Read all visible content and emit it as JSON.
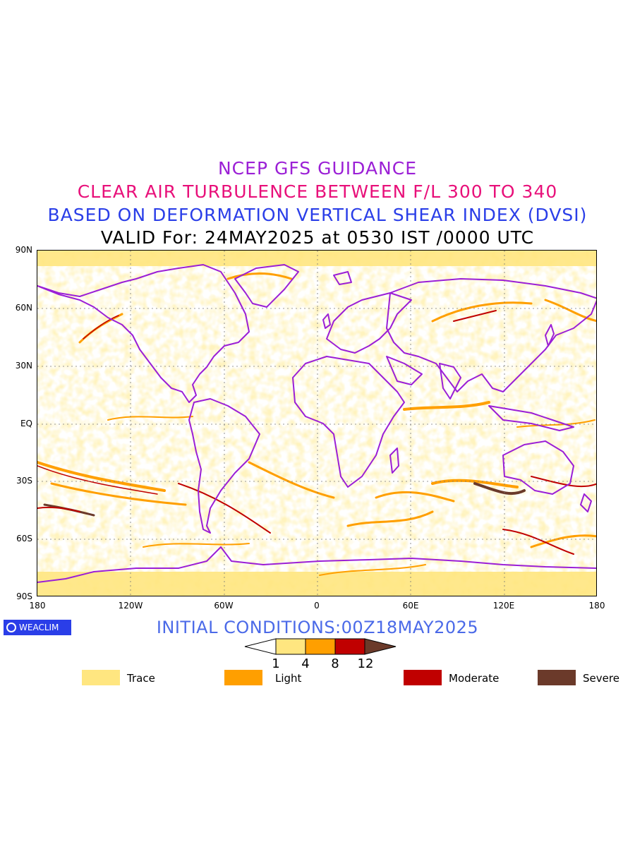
{
  "titles": {
    "line1": "NCEP GFS GUIDANCE",
    "line2": "CLEAR AIR TURBULENCE BETWEEN F/L 300 TO 340",
    "line3": "BASED ON DEFORMATION VERTICAL SHEAR INDEX (DVSI)",
    "line4": "VALID For: 24MAY2025 at 0530 IST /0000 UTC"
  },
  "map": {
    "projection": "equirectangular",
    "lat_ticks": [
      "90N",
      "60N",
      "30N",
      "EQ",
      "30S",
      "60S",
      "90S"
    ],
    "lon_ticks": [
      "180",
      "120W",
      "60W",
      "0",
      "60E",
      "120E",
      "180"
    ],
    "coastline_color": "#9b1fd6",
    "grid": "dotted"
  },
  "badge": {
    "text": "WEACLIM"
  },
  "init_conditions": "INITIAL CONDITIONS:00Z18MAY2025",
  "colorbar": {
    "thresholds": [
      "1",
      "4",
      "8",
      "12"
    ],
    "colors": [
      "#ffffff",
      "#ffe680",
      "#ff9f00",
      "#c00000",
      "#6b3a2a"
    ]
  },
  "legend": [
    {
      "label": "Trace",
      "color": "#ffe680"
    },
    {
      "label": "Light",
      "color": "#ff9f00"
    },
    {
      "label": "Moderate",
      "color": "#c00000"
    },
    {
      "label": "Severe",
      "color": "#6b3a2a"
    }
  ]
}
